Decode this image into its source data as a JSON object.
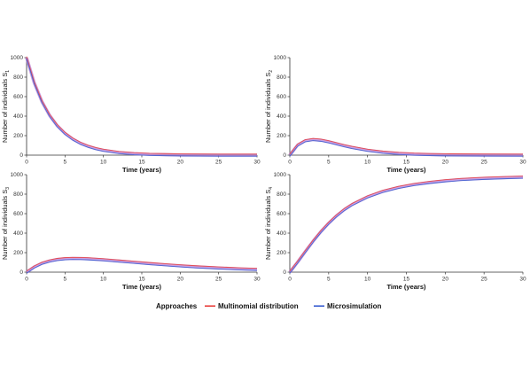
{
  "chart_data": [
    {
      "type": "line",
      "panel": "top-left",
      "xlabel": "Time (years)",
      "ylabel": "Number of individuals S",
      "ylabel_sub": "1",
      "xlim": [
        0,
        30
      ],
      "ylim": [
        0,
        1000
      ],
      "xticks": [
        0,
        5,
        10,
        15,
        20,
        25,
        30
      ],
      "yticks": [
        0,
        200,
        400,
        600,
        800,
        1000
      ],
      "grid": false,
      "x": [
        0,
        1,
        2,
        3,
        4,
        5,
        6,
        7,
        8,
        9,
        10,
        12,
        14,
        16,
        18,
        20,
        25,
        30
      ],
      "series": [
        {
          "name": "Multinomial distribution",
          "color": "#e8423f",
          "values": [
            1000,
            741,
            549,
            407,
            301,
            223,
            165,
            122,
            91,
            67,
            50,
            27,
            15,
            8,
            5,
            2,
            0,
            0
          ]
        },
        {
          "name": "Microsimulation",
          "color": "#3a5fd1",
          "values": [
            1000,
            741,
            549,
            407,
            301,
            223,
            165,
            122,
            91,
            67,
            50,
            27,
            15,
            8,
            5,
            2,
            0,
            0
          ]
        }
      ]
    },
    {
      "type": "line",
      "panel": "top-right",
      "xlabel": "Time (years)",
      "ylabel": "Number of individuals S",
      "ylabel_sub": "2",
      "xlim": [
        0,
        30
      ],
      "ylim": [
        0,
        1000
      ],
      "xticks": [
        0,
        5,
        10,
        15,
        20,
        25,
        30
      ],
      "yticks": [
        0,
        200,
        400,
        600,
        800,
        1000
      ],
      "grid": false,
      "x": [
        0,
        1,
        2,
        3,
        4,
        5,
        6,
        7,
        8,
        10,
        12,
        14,
        16,
        18,
        20,
        25,
        30
      ],
      "series": [
        {
          "name": "Multinomial distribution",
          "color": "#e8423f",
          "values": [
            0,
            103,
            148,
            160,
            153,
            137,
            117,
            97,
            79,
            50,
            30,
            18,
            10,
            6,
            3,
            1,
            0
          ]
        },
        {
          "name": "Microsimulation",
          "color": "#3a5fd1",
          "values": [
            0,
            103,
            148,
            160,
            153,
            137,
            117,
            97,
            79,
            50,
            30,
            18,
            10,
            6,
            3,
            1,
            0
          ]
        }
      ]
    },
    {
      "type": "line",
      "panel": "bottom-left",
      "xlabel": "Time (years)",
      "ylabel": "Number of individuals S",
      "ylabel_sub": "3",
      "xlim": [
        0,
        30
      ],
      "ylim": [
        0,
        1000
      ],
      "xticks": [
        0,
        5,
        10,
        15,
        20,
        25,
        30
      ],
      "yticks": [
        0,
        200,
        400,
        600,
        800,
        1000
      ],
      "grid": false,
      "x": [
        0,
        1,
        2,
        3,
        4,
        5,
        6,
        7,
        8,
        10,
        12,
        14,
        16,
        18,
        20,
        22,
        25,
        28,
        30
      ],
      "series": [
        {
          "name": "Multinomial distribution",
          "color": "#e8423f",
          "values": [
            0,
            53,
            91,
            115,
            130,
            138,
            141,
            140,
            137,
            127,
            114,
            101,
            88,
            76,
            65,
            55,
            43,
            33,
            28
          ]
        },
        {
          "name": "Microsimulation",
          "color": "#3a5fd1",
          "values": [
            0,
            53,
            91,
            115,
            130,
            138,
            141,
            140,
            137,
            127,
            114,
            101,
            88,
            76,
            65,
            55,
            43,
            33,
            28
          ]
        }
      ]
    },
    {
      "type": "line",
      "panel": "bottom-right",
      "xlabel": "Time (years)",
      "ylabel": "Number of individuals S",
      "ylabel_sub": "4",
      "xlim": [
        0,
        30
      ],
      "ylim": [
        0,
        1000
      ],
      "xticks": [
        0,
        5,
        10,
        15,
        20,
        25,
        30
      ],
      "yticks": [
        0,
        200,
        400,
        600,
        800,
        1000
      ],
      "grid": false,
      "x": [
        0,
        1,
        2,
        3,
        4,
        5,
        6,
        7,
        8,
        10,
        12,
        14,
        16,
        18,
        20,
        22,
        25,
        28,
        30
      ],
      "series": [
        {
          "name": "Multinomial distribution",
          "color": "#e8423f",
          "values": [
            0,
            103,
            212,
            318,
            416,
            502,
            577,
            641,
            693,
            772,
            829,
            869,
            899,
            920,
            937,
            950,
            962,
            970,
            974
          ]
        },
        {
          "name": "Microsimulation",
          "color": "#3a5fd1",
          "values": [
            0,
            103,
            212,
            318,
            416,
            502,
            577,
            641,
            693,
            772,
            829,
            869,
            899,
            920,
            937,
            950,
            962,
            970,
            974
          ]
        }
      ]
    }
  ],
  "legend": {
    "title": "Approaches",
    "placement": "bottom",
    "items": [
      {
        "label": "Multinomial distribution",
        "color": "#e8423f"
      },
      {
        "label": "Microsimulation",
        "color": "#3a5fd1"
      }
    ]
  },
  "colors": {
    "axis": "#333333",
    "band": "#b87fd6"
  }
}
